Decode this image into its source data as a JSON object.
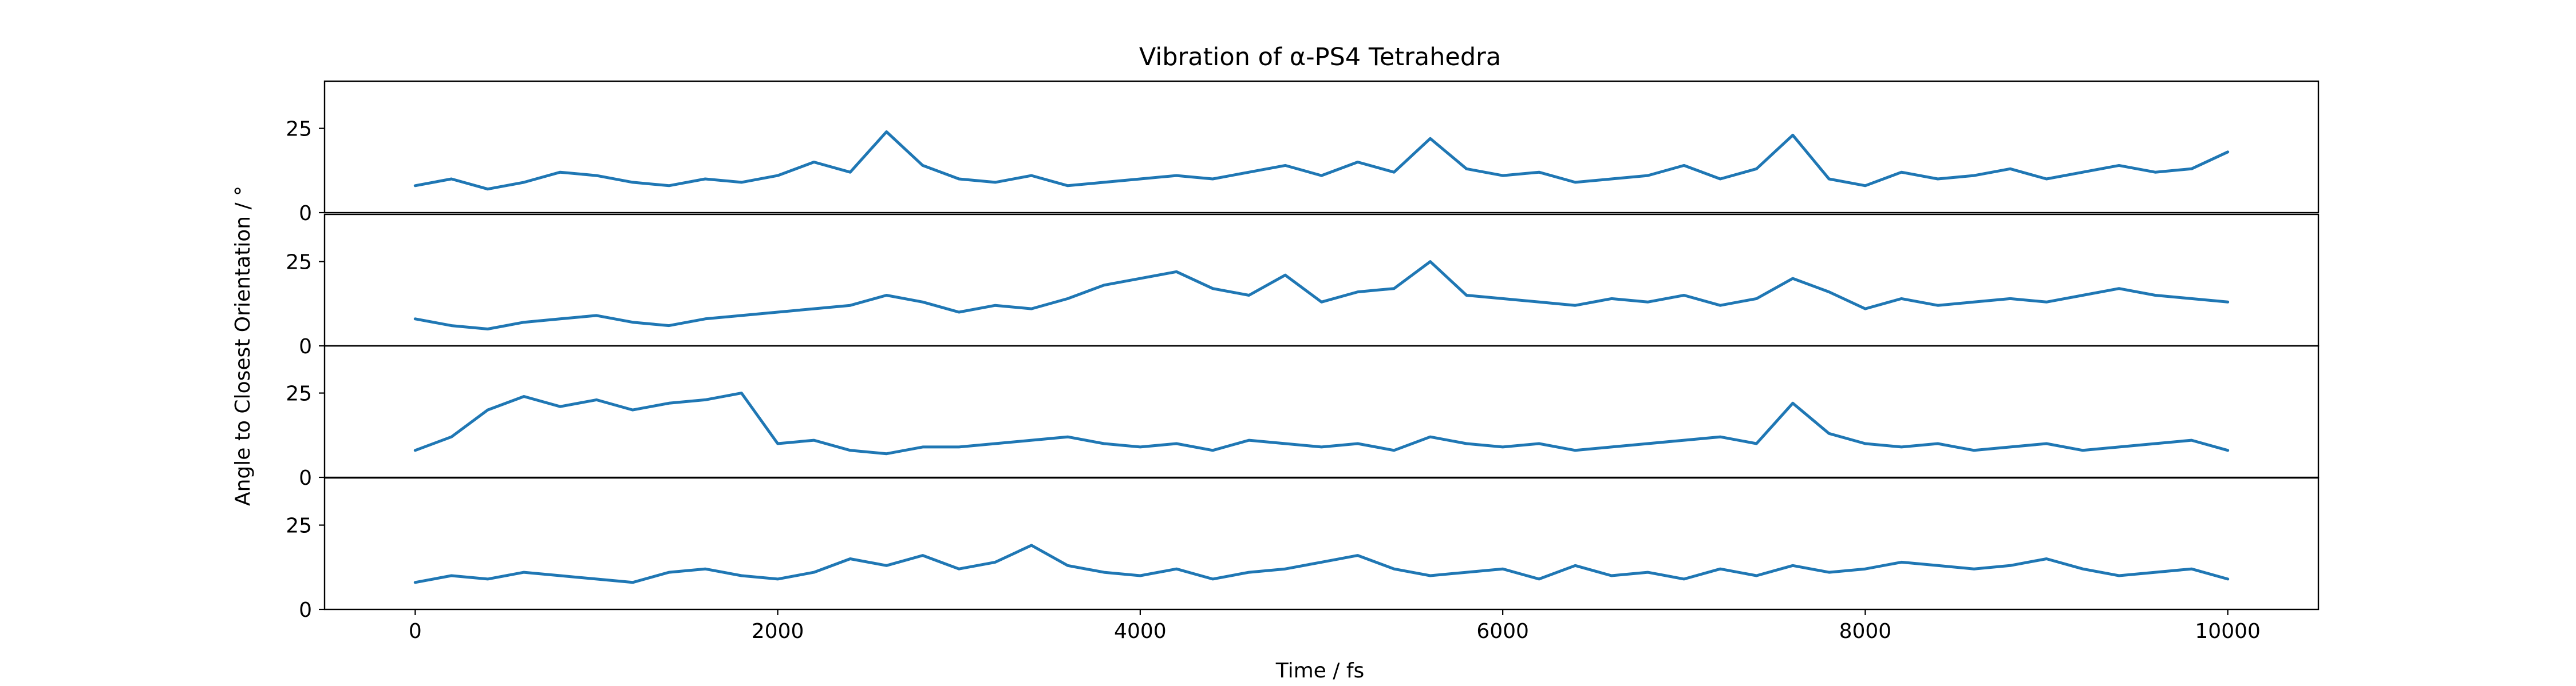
{
  "chart_data": {
    "type": "line",
    "title": "Vibration of α-PS4 Tetrahedra",
    "xlabel": "Time / fs",
    "ylabel": "Angle to Closest Orientation / °",
    "xlim": [
      -500,
      10500
    ],
    "x_ticks": [
      0,
      2000,
      4000,
      6000,
      8000,
      10000
    ],
    "y_ticks": [
      0,
      25
    ],
    "ylim": [
      0,
      39
    ],
    "grid": false,
    "legend": "none",
    "color": "#1f77b4",
    "x": [
      0,
      200,
      400,
      600,
      800,
      1000,
      1200,
      1400,
      1600,
      1800,
      2000,
      2200,
      2400,
      2600,
      2800,
      3000,
      3200,
      3400,
      3600,
      3800,
      4000,
      4200,
      4400,
      4600,
      4800,
      5000,
      5200,
      5400,
      5600,
      5800,
      6000,
      6200,
      6400,
      6600,
      6800,
      7000,
      7200,
      7400,
      7600,
      7800,
      8000,
      8200,
      8400,
      8600,
      8800,
      9000,
      9200,
      9400,
      9600,
      9800,
      10000
    ],
    "series": [
      {
        "values": [
          8,
          10,
          7,
          9,
          12,
          11,
          9,
          8,
          10,
          9,
          11,
          15,
          12,
          24,
          14,
          10,
          9,
          11,
          8,
          9,
          10,
          11,
          10,
          12,
          14,
          11,
          15,
          12,
          22,
          13,
          11,
          12,
          9,
          10,
          11,
          14,
          10,
          13,
          23,
          10,
          8,
          12,
          10,
          11,
          13,
          10,
          12,
          14,
          12,
          13,
          18
        ]
      },
      {
        "values": [
          8,
          6,
          5,
          7,
          8,
          9,
          7,
          6,
          8,
          9,
          10,
          11,
          12,
          15,
          13,
          10,
          12,
          11,
          14,
          18,
          20,
          22,
          17,
          15,
          21,
          13,
          16,
          17,
          25,
          15,
          14,
          13,
          12,
          14,
          13,
          15,
          12,
          14,
          20,
          16,
          11,
          14,
          12,
          13,
          14,
          13,
          15,
          17,
          15,
          14,
          13
        ]
      },
      {
        "values": [
          8,
          12,
          20,
          24,
          21,
          23,
          20,
          22,
          23,
          25,
          10,
          11,
          8,
          7,
          9,
          9,
          10,
          11,
          12,
          10,
          9,
          10,
          8,
          11,
          10,
          9,
          10,
          8,
          12,
          10,
          9,
          10,
          8,
          9,
          10,
          11,
          12,
          10,
          22,
          13,
          10,
          9,
          10,
          8,
          9,
          10,
          8,
          9,
          10,
          11,
          8
        ]
      },
      {
        "values": [
          8,
          10,
          9,
          11,
          10,
          9,
          8,
          11,
          12,
          10,
          9,
          11,
          15,
          13,
          16,
          12,
          14,
          19,
          13,
          11,
          10,
          12,
          9,
          11,
          12,
          14,
          16,
          12,
          10,
          11,
          12,
          9,
          13,
          10,
          11,
          9,
          12,
          10,
          13,
          11,
          12,
          14,
          13,
          12,
          13,
          15,
          12,
          10,
          11,
          12,
          9
        ]
      }
    ]
  }
}
